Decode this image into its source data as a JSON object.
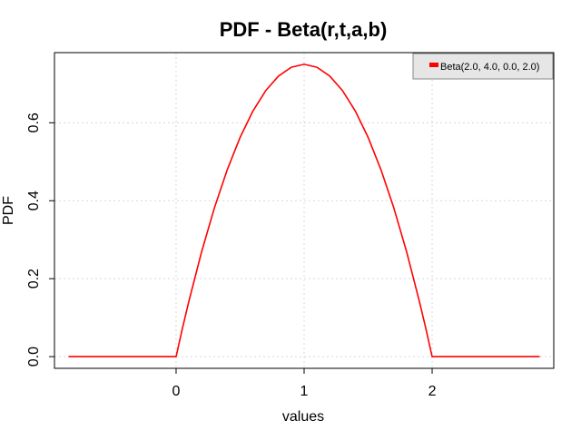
{
  "chart_data": {
    "type": "line",
    "title": "PDF - Beta(r,t,a,b)",
    "xlabel": "values",
    "ylabel": "PDF",
    "xlim": [
      -0.95,
      2.95
    ],
    "ylim": [
      -0.03,
      0.78
    ],
    "xticks": [
      0,
      1,
      2
    ],
    "xtick_labels": [
      "0",
      "1",
      "2"
    ],
    "yticks": [
      0.0,
      0.2,
      0.4,
      0.6
    ],
    "ytick_labels": [
      "0.0",
      "0.2",
      "0.4",
      "0.6"
    ],
    "grid": true,
    "legend_position": "top-right",
    "series": [
      {
        "name": "Beta(2.0, 4.0, 0.0, 2.0)",
        "color": "#ff0000",
        "x": [
          -0.84,
          -0.6,
          -0.4,
          -0.2,
          0.0,
          0.05,
          0.1,
          0.2,
          0.3,
          0.4,
          0.5,
          0.6,
          0.7,
          0.8,
          0.9,
          1.0,
          1.1,
          1.2,
          1.3,
          1.4,
          1.5,
          1.6,
          1.7,
          1.8,
          1.9,
          1.95,
          2.0,
          2.2,
          2.4,
          2.6,
          2.84
        ],
        "y": [
          0.0,
          0.0,
          0.0,
          0.0,
          0.0,
          0.0731,
          0.1425,
          0.27,
          0.3825,
          0.48,
          0.5625,
          0.63,
          0.6825,
          0.72,
          0.7425,
          0.75,
          0.7425,
          0.72,
          0.6825,
          0.63,
          0.5625,
          0.48,
          0.3825,
          0.27,
          0.1425,
          0.0731,
          0.0,
          0.0,
          0.0,
          0.0,
          0.0
        ]
      }
    ]
  }
}
